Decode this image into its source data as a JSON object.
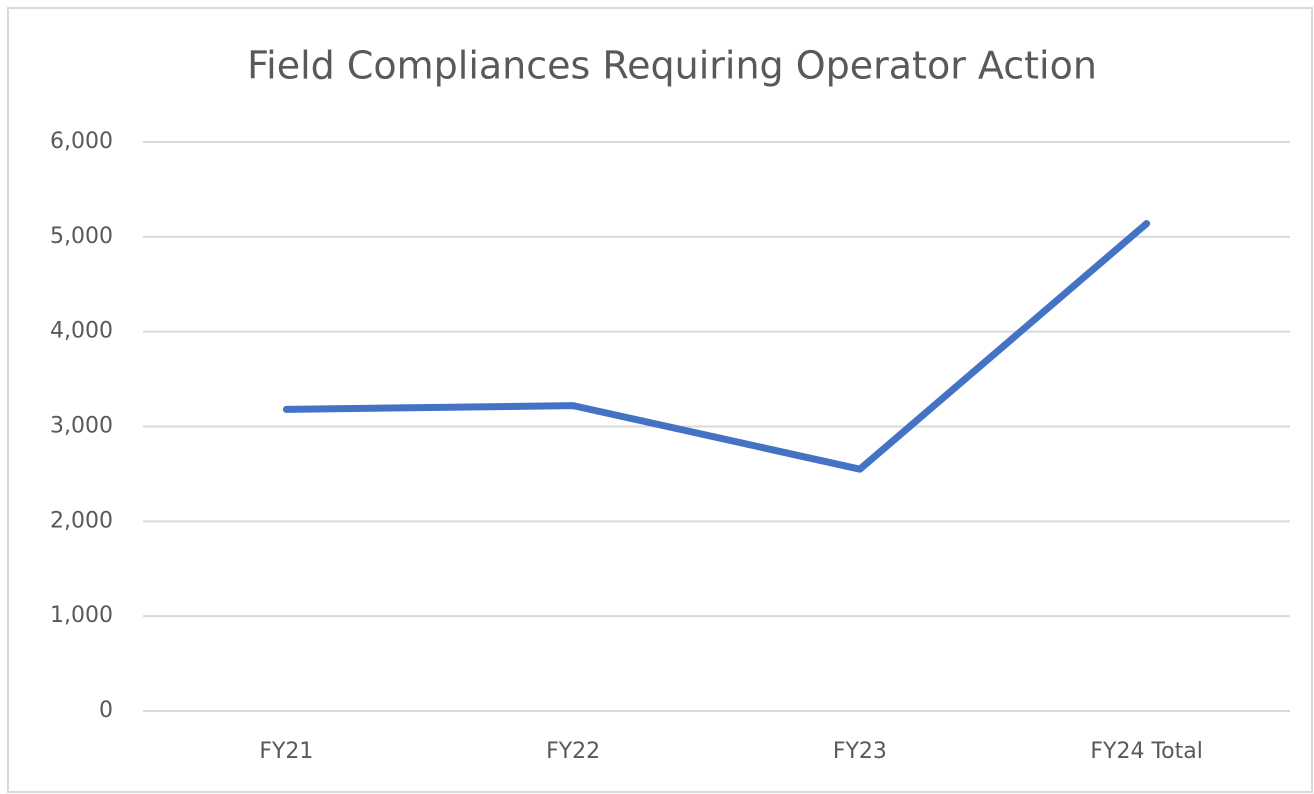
{
  "chart_data": {
    "type": "line",
    "title": "Field Compliances Requiring Operator Action",
    "categories": [
      "FY21",
      "FY22",
      "FY23",
      "FY24 Total"
    ],
    "series": [
      {
        "name": "Field Compliances",
        "color": "#4472c4",
        "values": [
          3180,
          3220,
          2550,
          5140
        ]
      }
    ],
    "ylim": [
      0,
      6000
    ],
    "yticks": [
      0,
      {
        "value": 1000,
        "label": "1,000"
      },
      {
        "value": 2000,
        "label": "2,000"
      },
      {
        "value": 3000,
        "label": "3,000"
      },
      {
        "value": 4000,
        "label": "4,000"
      },
      {
        "value": 5000,
        "label": "5,000"
      },
      {
        "value": 6000,
        "label": "6,000"
      }
    ],
    "grid": true
  }
}
